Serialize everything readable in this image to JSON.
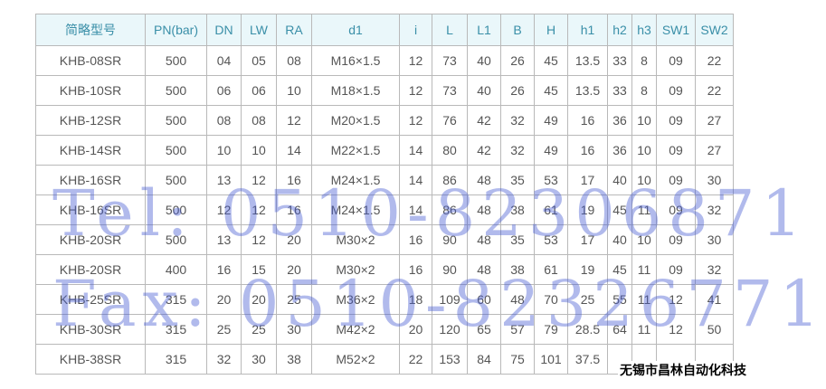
{
  "table": {
    "headers": [
      "简略型号",
      "PN(bar)",
      "DN",
      "LW",
      "RA",
      "d1",
      "i",
      "L",
      "L1",
      "B",
      "H",
      "h1",
      "h2",
      "h3",
      "SW1",
      "SW2"
    ],
    "rows": [
      [
        "KHB-08SR",
        "500",
        "04",
        "05",
        "08",
        "M16×1.5",
        "12",
        "73",
        "40",
        "26",
        "45",
        "13.5",
        "33",
        "8",
        "09",
        "22"
      ],
      [
        "KHB-10SR",
        "500",
        "06",
        "06",
        "10",
        "M18×1.5",
        "12",
        "73",
        "40",
        "26",
        "45",
        "13.5",
        "33",
        "8",
        "09",
        "22"
      ],
      [
        "KHB-12SR",
        "500",
        "08",
        "08",
        "12",
        "M20×1.5",
        "12",
        "76",
        "42",
        "32",
        "49",
        "16",
        "36",
        "10",
        "09",
        "27"
      ],
      [
        "KHB-14SR",
        "500",
        "10",
        "10",
        "14",
        "M22×1.5",
        "14",
        "80",
        "42",
        "32",
        "49",
        "16",
        "36",
        "10",
        "09",
        "27"
      ],
      [
        "KHB-16SR",
        "500",
        "13",
        "12",
        "16",
        "M24×1.5",
        "14",
        "86",
        "48",
        "35",
        "53",
        "17",
        "40",
        "10",
        "09",
        "30"
      ],
      [
        "KHB-16SR",
        "500",
        "12",
        "12",
        "16",
        "M24×1.5",
        "14",
        "86",
        "48",
        "38",
        "61",
        "19",
        "45",
        "11",
        "09",
        "32"
      ],
      [
        "KHB-20SR",
        "500",
        "13",
        "12",
        "20",
        "M30×2",
        "16",
        "90",
        "48",
        "35",
        "53",
        "17",
        "40",
        "10",
        "09",
        "30"
      ],
      [
        "KHB-20SR",
        "400",
        "16",
        "15",
        "20",
        "M30×2",
        "16",
        "90",
        "48",
        "38",
        "61",
        "19",
        "45",
        "11",
        "09",
        "32"
      ],
      [
        "KHB-25SR",
        "315",
        "20",
        "20",
        "25",
        "M36×2",
        "18",
        "109",
        "60",
        "48",
        "70",
        "25",
        "55",
        "11",
        "12",
        "41"
      ],
      [
        "KHB-30SR",
        "315",
        "25",
        "25",
        "30",
        "M42×2",
        "20",
        "120",
        "65",
        "57",
        "79",
        "28.5",
        "64",
        "11",
        "12",
        "50"
      ],
      [
        "KHB-38SR",
        "315",
        "32",
        "30",
        "38",
        "M52×2",
        "22",
        "153",
        "84",
        "75",
        "101",
        "37.5",
        "",
        "",
        "",
        ""
      ]
    ]
  },
  "watermark": {
    "tel": "Tel: 0510-82306871",
    "fax": "Fax: 0510-82326771",
    "color": "#4a5ad2"
  },
  "company": "无锡市昌林自动化科技"
}
